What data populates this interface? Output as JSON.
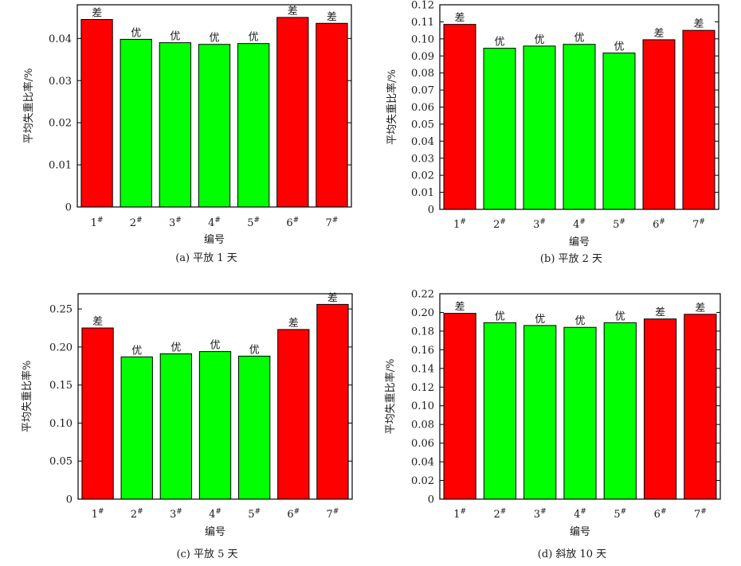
{
  "colors": {
    "bad": "#ff0000",
    "good": "#00ff00",
    "frame": "#000000"
  },
  "chart_data": [
    {
      "type": "bar",
      "id": "a",
      "caption": "(a) 平放 1 天",
      "xlabel": "编号",
      "ylabel": "平均失重比率/%",
      "categories": [
        "1#",
        "2#",
        "3#",
        "4#",
        "5#",
        "6#",
        "7#"
      ],
      "values": [
        0.0445,
        0.0398,
        0.039,
        0.0386,
        0.0388,
        0.045,
        0.0436
      ],
      "labels": [
        "差",
        "优",
        "优",
        "优",
        "优",
        "差",
        "差"
      ],
      "ylim": [
        0,
        0.048
      ],
      "yticks": [
        "0",
        "0.01",
        "0.02",
        "0.03",
        "0.04"
      ],
      "ytick_values": [
        0,
        0.01,
        0.02,
        0.03,
        0.04
      ]
    },
    {
      "type": "bar",
      "id": "b",
      "caption": "(b) 平放 2 天",
      "xlabel": "编号",
      "ylabel": "平均失重比率/%",
      "categories": [
        "1#",
        "2#",
        "3#",
        "4#",
        "5#",
        "6#",
        "7#"
      ],
      "values": [
        0.1085,
        0.0945,
        0.0958,
        0.0968,
        0.0917,
        0.0995,
        0.105
      ],
      "labels": [
        "差",
        "优",
        "优",
        "优",
        "优",
        "差",
        "差"
      ],
      "ylim": [
        0,
        0.12
      ],
      "yticks": [
        "0",
        "0.01",
        "0.02",
        "0.03",
        "0.04",
        "0.05",
        "0.06",
        "0.07",
        "0.08",
        "0.09",
        "0.10",
        "0.11",
        "0.12"
      ],
      "ytick_values": [
        0,
        0.01,
        0.02,
        0.03,
        0.04,
        0.05,
        0.06,
        0.07,
        0.08,
        0.09,
        0.1,
        0.11,
        0.12
      ]
    },
    {
      "type": "bar",
      "id": "c",
      "caption": "(c) 平放 5 天",
      "xlabel": "编号",
      "ylabel": "平均失重比率%",
      "categories": [
        "1#",
        "2#",
        "3#",
        "4#",
        "5#",
        "6#",
        "7#"
      ],
      "values": [
        0.225,
        0.187,
        0.191,
        0.194,
        0.188,
        0.223,
        0.256
      ],
      "labels": [
        "差",
        "优",
        "优",
        "优",
        "优",
        "差",
        "差"
      ],
      "ylim": [
        0,
        0.27
      ],
      "yticks": [
        "0",
        "0.05",
        "0.10",
        "0.15",
        "0.20",
        "0.25"
      ],
      "ytick_values": [
        0,
        0.05,
        0.1,
        0.15,
        0.2,
        0.25
      ]
    },
    {
      "type": "bar",
      "id": "d",
      "caption": "(d) 斜放 10 天",
      "xlabel": "编号",
      "ylabel": "平均失重比率/%",
      "categories": [
        "1#",
        "2#",
        "3#",
        "4#",
        "5#",
        "6#",
        "7#"
      ],
      "values": [
        0.199,
        0.189,
        0.186,
        0.184,
        0.189,
        0.193,
        0.198
      ],
      "labels": [
        "差",
        "优",
        "优",
        "优",
        "优",
        "差",
        "差"
      ],
      "ylim": [
        0,
        0.22
      ],
      "yticks": [
        "0",
        "0.02",
        "0.04",
        "0.06",
        "0.08",
        "0.10",
        "0.12",
        "0.14",
        "0.16",
        "0.18",
        "0.20",
        "0.22"
      ],
      "ytick_values": [
        0,
        0.02,
        0.04,
        0.06,
        0.08,
        0.1,
        0.12,
        0.14,
        0.16,
        0.18,
        0.2,
        0.22
      ]
    }
  ]
}
